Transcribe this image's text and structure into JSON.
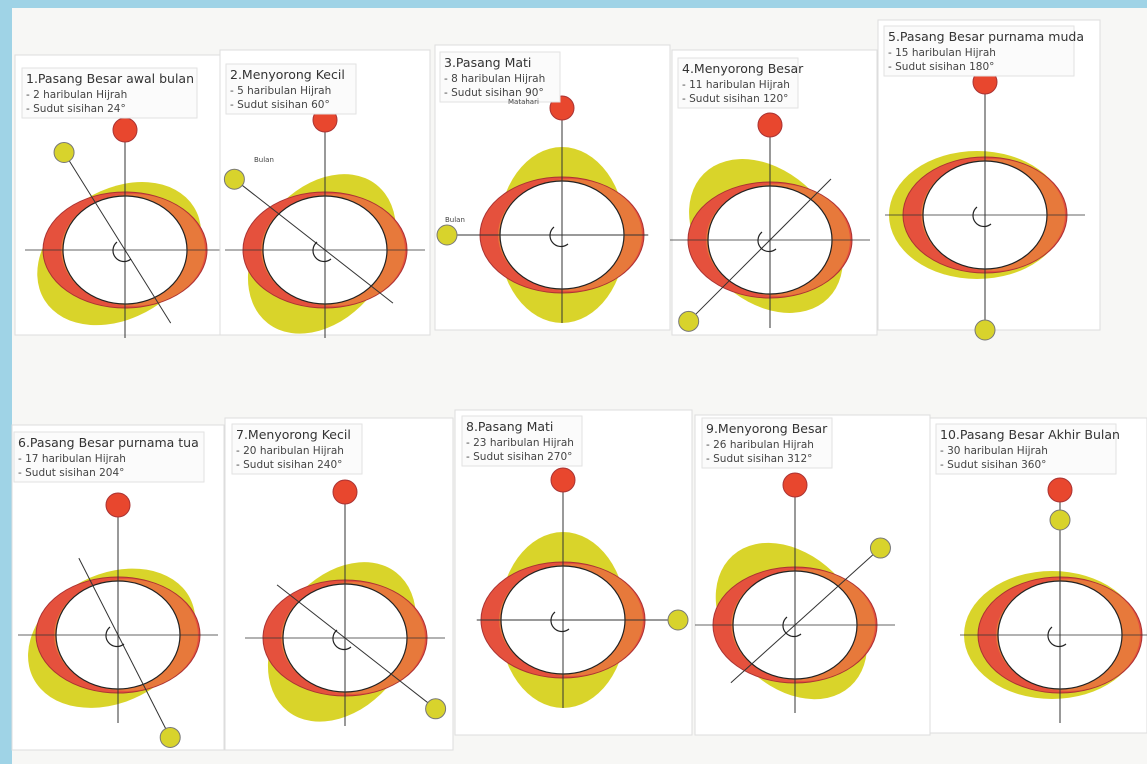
{
  "cards": [
    {
      "title": "1.Pasang Besar awal bulan",
      "lines": [
        "- 2 haribulan Hijrah",
        "- Sudut sisihan 24°"
      ]
    },
    {
      "title": "2.Menyorong Kecil",
      "lines": [
        "- 5 haribulan Hijrah",
        "- Sudut sisihan 60°"
      ],
      "labels": [
        "Bulan"
      ]
    },
    {
      "title": "3.Pasang Mati",
      "lines": [
        "- 8 haribulan Hijrah",
        "- Sudut sisihan 90°"
      ],
      "labels": [
        "Matahari",
        "Bulan"
      ]
    },
    {
      "title": "4.Menyorong Besar",
      "lines": [
        "- 11 haribulan Hijrah",
        "- Sudut sisihan 120°"
      ]
    },
    {
      "title": "5.Pasang Besar purnama muda",
      "lines": [
        "- 15 haribulan Hijrah",
        "- Sudut sisihan 180°"
      ]
    },
    {
      "title": "6.Pasang Besar purnama tua",
      "lines": [
        "- 17 haribulan Hijrah",
        "- Sudut sisihan 204°"
      ]
    },
    {
      "title": "7.Menyorong Kecil",
      "lines": [
        "- 20 haribulan Hijrah",
        "- Sudut sisihan 240°"
      ]
    },
    {
      "title": "8.Pasang Mati",
      "lines": [
        "- 23 haribulan Hijrah",
        "- Sudut sisihan 270°"
      ]
    },
    {
      "title": "9.Menyorong Besar",
      "lines": [
        "- 26 haribulan Hijrah",
        "- Sudut sisihan 312°"
      ]
    },
    {
      "title": "10.Pasang Besar Akhir Bulan",
      "lines": [
        "- 30 haribulan Hijrah",
        "- Sudut sisihan 360°"
      ]
    }
  ]
}
